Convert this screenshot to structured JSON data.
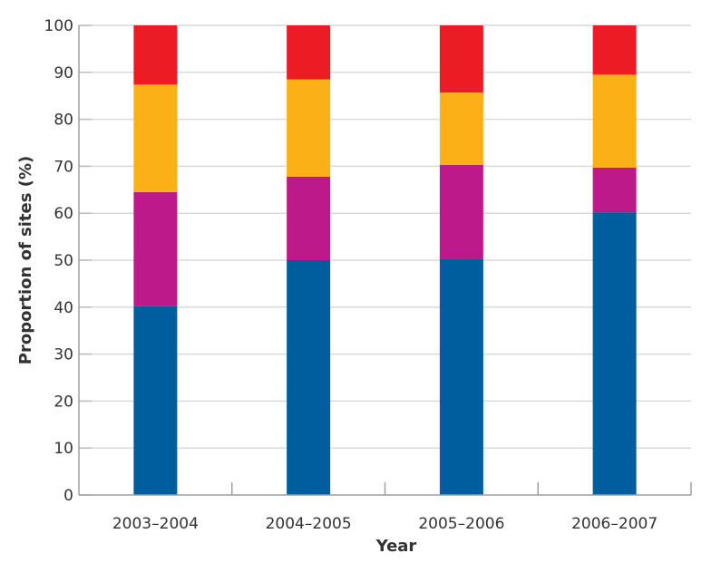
{
  "chart_data": {
    "type": "bar",
    "stacked": true,
    "title": "",
    "xlabel": "Year",
    "ylabel": "Proportion of sites (%)",
    "ylim": [
      0,
      100
    ],
    "yticks": [
      0,
      10,
      20,
      30,
      40,
      50,
      60,
      70,
      80,
      90,
      100
    ],
    "grid": true,
    "legend": null,
    "categories": [
      "2003–2004",
      "2004–2005",
      "2005–2006",
      "2006–2007"
    ],
    "series": [
      {
        "name": "blue",
        "color": "#005e9e",
        "values": [
          40.3,
          50.0,
          50.2,
          60.2
        ]
      },
      {
        "name": "magenta",
        "color": "#be198a",
        "values": [
          24.2,
          17.8,
          20.1,
          9.5
        ]
      },
      {
        "name": "orange",
        "color": "#fbb017",
        "values": [
          22.9,
          20.7,
          15.4,
          19.8
        ]
      },
      {
        "name": "red",
        "color": "#ec1c24",
        "values": [
          12.6,
          11.5,
          14.3,
          10.5
        ]
      }
    ]
  },
  "axes": {
    "x_title": "Year",
    "y_title": "Proportion of sites (%)"
  }
}
